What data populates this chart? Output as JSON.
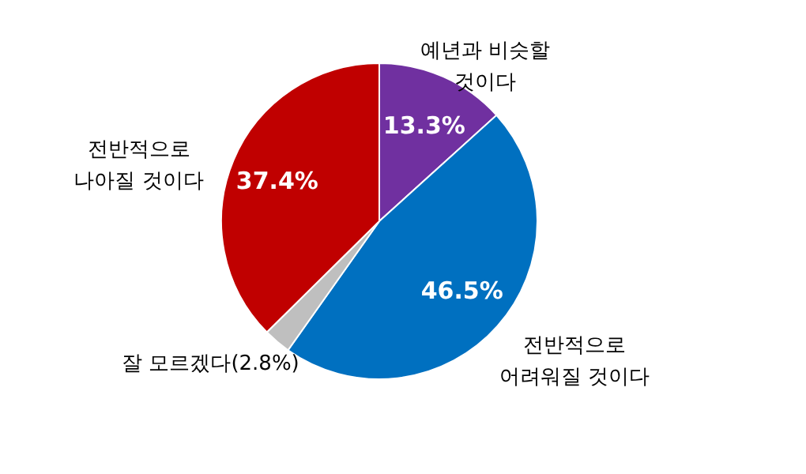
{
  "chart_data": {
    "type": "pie",
    "categories": [
      "예년과 비슷할\n것이다",
      "전반적으로\n어려워질 것이다",
      "잘 모르겠다(2.8%)",
      "전반적으로\n나아질 것이다"
    ],
    "values": [
      13.3,
      46.5,
      2.8,
      37.4
    ],
    "colors": [
      "#7030a0",
      "#0070c0",
      "#bfbfbf",
      "#c00000"
    ],
    "value_labels": [
      "13.3%",
      "46.5%",
      null,
      "37.4%"
    ]
  }
}
